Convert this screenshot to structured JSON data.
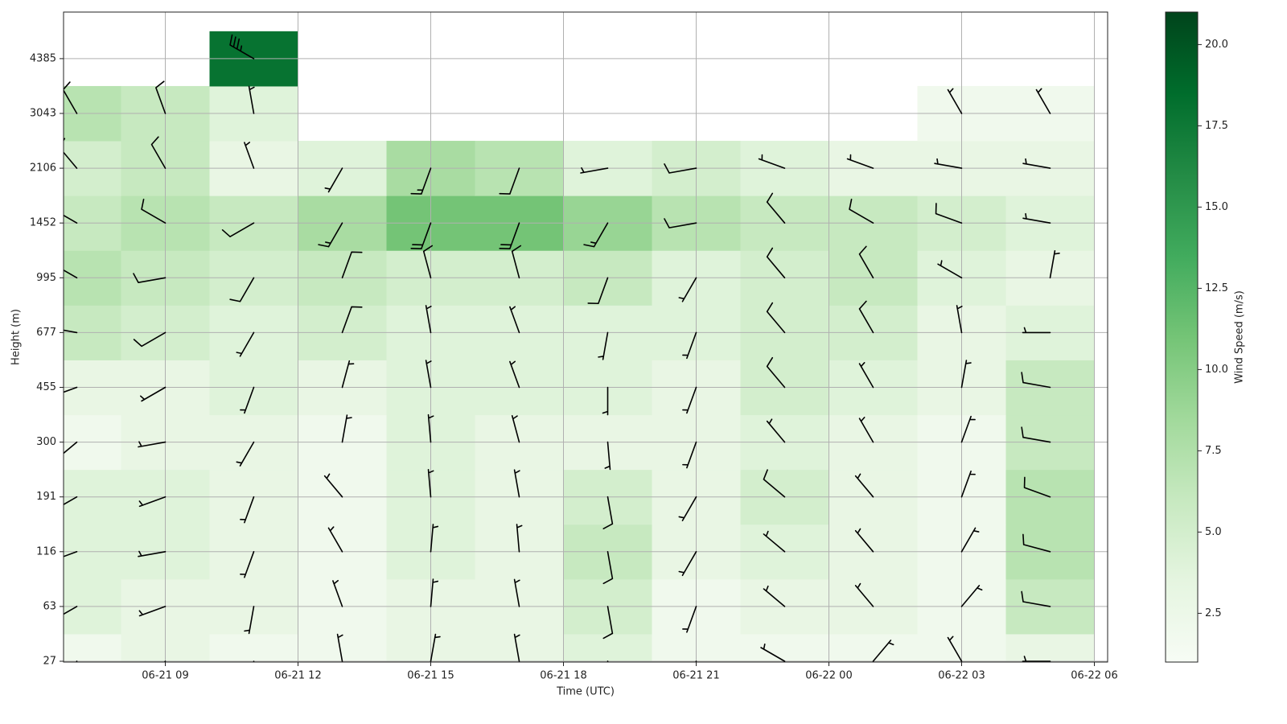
{
  "chart_data": {
    "type": "heatmap",
    "x_label": "Time (UTC)",
    "y_label": "Height (m)",
    "xlim": [
      6.7,
      30.3
    ],
    "xticks": [
      {
        "value": 9,
        "label": "06-21 09"
      },
      {
        "value": 12,
        "label": "06-21 12"
      },
      {
        "value": 15,
        "label": "06-21 15"
      },
      {
        "value": 18,
        "label": "06-21 18"
      },
      {
        "value": 21,
        "label": "06-21 21"
      },
      {
        "value": 24,
        "label": "06-22 00"
      },
      {
        "value": 27,
        "label": "06-22 03"
      },
      {
        "value": 30,
        "label": "06-22 06"
      }
    ],
    "x": [
      7,
      9,
      11,
      13,
      15,
      17,
      19,
      21,
      23,
      25,
      27,
      29
    ],
    "y": [
      27,
      63,
      116,
      191,
      300,
      455,
      677,
      995,
      1452,
      2106,
      3043,
      4385
    ],
    "grid": true,
    "values": [
      [
        2,
        3,
        2,
        2,
        3,
        3,
        4,
        2,
        2,
        2,
        2,
        3
      ],
      [
        4,
        3,
        3,
        2,
        3,
        3,
        5,
        2,
        3,
        3,
        2,
        6
      ],
      [
        4,
        4,
        3,
        2,
        4,
        3,
        6,
        3,
        4,
        3,
        2,
        7
      ],
      [
        4,
        4,
        3,
        2,
        4,
        3,
        5,
        3,
        5,
        3,
        2,
        7
      ],
      [
        2,
        3,
        3,
        2,
        4,
        3,
        3,
        3,
        4,
        3,
        2,
        6
      ],
      [
        3,
        3,
        4,
        3,
        4,
        4,
        4,
        3,
        5,
        4,
        3,
        6
      ],
      [
        6,
        5,
        4,
        5,
        4,
        4,
        4,
        4,
        5,
        5,
        3,
        4
      ],
      [
        7,
        6,
        5,
        6,
        5,
        5,
        6,
        4,
        5,
        6,
        4,
        3
      ],
      [
        6,
        7,
        6,
        8,
        11,
        11,
        9,
        7,
        6,
        6,
        5,
        4
      ],
      [
        5,
        6,
        3,
        4,
        8,
        7,
        4,
        5,
        4,
        3,
        3,
        3
      ],
      [
        7,
        6,
        4,
        null,
        null,
        null,
        null,
        null,
        null,
        null,
        2,
        2
      ],
      [
        null,
        null,
        18,
        null,
        null,
        null,
        null,
        null,
        null,
        null,
        null,
        null
      ]
    ],
    "directions": [
      [
        200,
        220,
        180,
        350,
        10,
        350,
        160,
        200,
        300,
        40,
        330,
        270
      ],
      [
        240,
        250,
        190,
        340,
        5,
        350,
        170,
        200,
        310,
        320,
        40,
        280
      ],
      [
        250,
        260,
        200,
        330,
        5,
        355,
        170,
        210,
        310,
        320,
        30,
        285
      ],
      [
        240,
        250,
        200,
        320,
        355,
        350,
        170,
        210,
        310,
        320,
        20,
        290
      ],
      [
        230,
        260,
        210,
        10,
        355,
        345,
        175,
        200,
        320,
        330,
        20,
        280
      ],
      [
        250,
        240,
        200,
        15,
        350,
        340,
        180,
        200,
        320,
        330,
        10,
        280
      ],
      [
        280,
        240,
        210,
        20,
        350,
        340,
        190,
        200,
        320,
        330,
        350,
        270
      ],
      [
        300,
        260,
        210,
        20,
        345,
        345,
        200,
        210,
        320,
        330,
        300,
        10
      ],
      [
        300,
        300,
        240,
        210,
        200,
        200,
        210,
        260,
        320,
        300,
        290,
        280
      ],
      [
        320,
        330,
        340,
        210,
        200,
        200,
        260,
        260,
        290,
        290,
        280,
        280
      ],
      [
        330,
        340,
        350,
        null,
        null,
        null,
        null,
        null,
        null,
        null,
        330,
        330
      ],
      [
        null,
        null,
        300,
        null,
        null,
        null,
        null,
        null,
        null,
        null,
        null,
        null
      ]
    ],
    "colorbar": {
      "label": "Wind Speed (m/s)",
      "lim": [
        1,
        21
      ],
      "ticks": [
        2.5,
        {
          "value": 5,
          "label": "5.0"
        },
        7.5,
        {
          "value": 10,
          "label": "10.0"
        },
        12.5,
        {
          "value": 15,
          "label": "15.0"
        },
        17.5,
        {
          "value": 20,
          "label": "20.0"
        }
      ]
    },
    "colors": [
      "#f7fcf5",
      "#e5f5e0",
      "#c7e9c0",
      "#a1d99b",
      "#74c476",
      "#41ab5d",
      "#238b45",
      "#006d2c",
      "#00441b"
    ]
  }
}
